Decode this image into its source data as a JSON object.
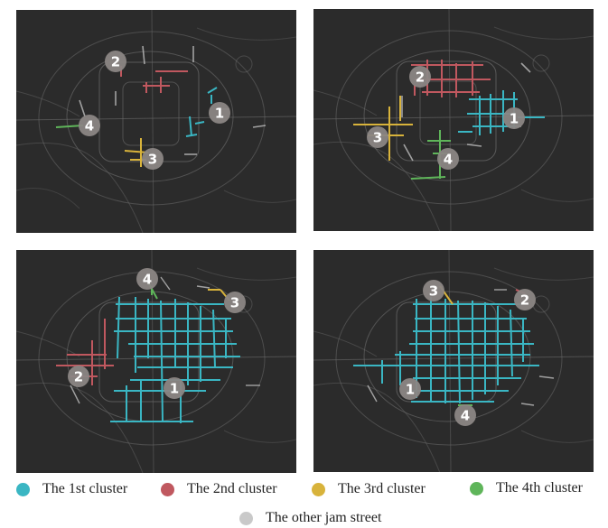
{
  "colors": {
    "cluster_1": "#3ab6c3",
    "cluster_2": "#c0585f",
    "cluster_3": "#d8b33b",
    "cluster_4": "#5fb55a",
    "other_jam": "#c9c9c9",
    "background": "#2b2b2b",
    "roads": "#6a6a6a",
    "marker_fill": "#8b8684"
  },
  "panels": [
    {
      "markers": [
        {
          "label": "1",
          "cluster": 1
        },
        {
          "label": "2",
          "cluster": 2
        },
        {
          "label": "3",
          "cluster": 3
        },
        {
          "label": "4",
          "cluster": 4
        }
      ]
    },
    {
      "markers": [
        {
          "label": "1",
          "cluster": 1
        },
        {
          "label": "2",
          "cluster": 2
        },
        {
          "label": "3",
          "cluster": 3
        },
        {
          "label": "4",
          "cluster": 4
        }
      ]
    },
    {
      "markers": [
        {
          "label": "1",
          "cluster": 1
        },
        {
          "label": "2",
          "cluster": 2
        },
        {
          "label": "3",
          "cluster": 3
        },
        {
          "label": "4",
          "cluster": 4
        }
      ]
    },
    {
      "markers": [
        {
          "label": "1",
          "cluster": 1
        },
        {
          "label": "2",
          "cluster": 2
        },
        {
          "label": "3",
          "cluster": 3
        },
        {
          "label": "4",
          "cluster": 4
        }
      ]
    }
  ],
  "legend": [
    {
      "label": "The 1st cluster",
      "color": "#3ab6c3"
    },
    {
      "label": "The 2nd cluster",
      "color": "#c0585f"
    },
    {
      "label": "The 3rd cluster",
      "color": "#d8b33b"
    },
    {
      "label": "The 4th cluster",
      "color": "#5fb55a"
    },
    {
      "label": "The other jam street",
      "color": "#c9c9c9"
    }
  ]
}
